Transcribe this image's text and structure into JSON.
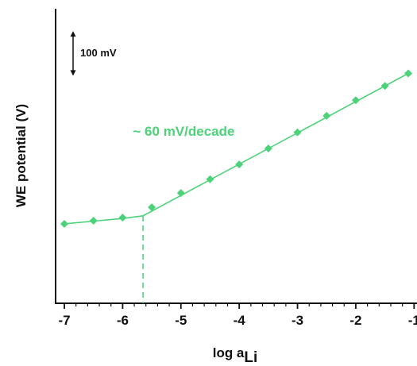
{
  "chart_data": {
    "type": "line",
    "xlabel_main": "log a",
    "xlabel_sub": "Li",
    "ylabel": "WE potential (V)",
    "xlim": [
      -7.15,
      -0.95
    ],
    "ylim": [
      -0.42,
      0.24
    ],
    "x_ticks": [
      -7,
      -6,
      -5,
      -4,
      -3,
      -2,
      -1
    ],
    "x_tick_labels": [
      "-7",
      "-6",
      "-5",
      "-4",
      "-3",
      "-2",
      "-1"
    ],
    "series": [
      {
        "marker": "diamond",
        "color": "#4cd37a",
        "x": [
          -7.0,
          -6.5,
          -6.0,
          -5.5,
          -5.0,
          -4.5,
          -4.0,
          -3.5,
          -3.0,
          -2.5,
          -2.0,
          -1.5,
          -1.1
        ],
        "y": [
          -0.242,
          -0.235,
          -0.228,
          -0.205,
          -0.173,
          -0.142,
          -0.109,
          -0.073,
          -0.037,
          0.0,
          0.035,
          0.067,
          0.095
        ]
      }
    ],
    "fit_line": {
      "color": "#4cd37a",
      "x": [
        -7.0,
        -6.0,
        -5.65,
        -1.1
      ],
      "y": [
        -0.242,
        -0.23,
        -0.224,
        0.095
      ]
    },
    "break_point": {
      "x": -5.65,
      "y": -0.224
    },
    "slope_annotation": {
      "text": "~ 60 mV/decade",
      "x": -4.95,
      "y": -0.045,
      "color": "#4cd37a"
    },
    "scale_bar": {
      "text": "100 mV",
      "x": -6.85,
      "y_top": 0.19,
      "y_bottom": 0.09
    },
    "grid": false
  }
}
